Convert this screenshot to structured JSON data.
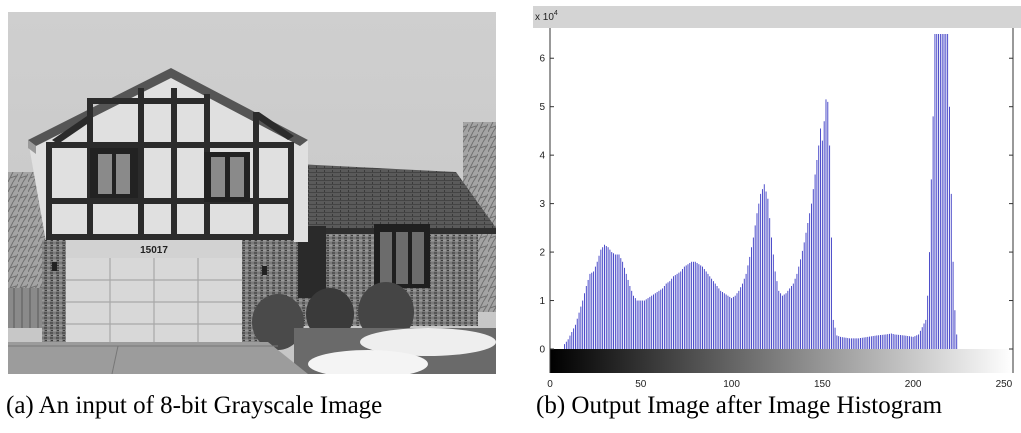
{
  "captions": {
    "a": "(a)  An input of 8-bit Grayscale Image",
    "b": "(b) Output Image after Image Histogram"
  },
  "photo": {
    "house_number": "15017"
  },
  "chart_data": {
    "type": "bar",
    "title": "",
    "xlabel": "",
    "ylabel": "",
    "y_multiplier_label": "x 10",
    "y_multiplier_exponent": "4",
    "xlim": [
      0,
      255
    ],
    "ylim": [
      0,
      6.5
    ],
    "xticks": [
      0,
      50,
      100,
      150,
      200,
      250
    ],
    "yticks": [
      0,
      1,
      2,
      3,
      4,
      5,
      6
    ],
    "bar_color": "#3b3bc4",
    "grid": false,
    "has_gray_colorbar": true,
    "points": [
      [
        8,
        0.1
      ],
      [
        10,
        0.2
      ],
      [
        12,
        0.35
      ],
      [
        14,
        0.5
      ],
      [
        16,
        0.75
      ],
      [
        18,
        1.0
      ],
      [
        20,
        1.3
      ],
      [
        22,
        1.55
      ],
      [
        24,
        1.6
      ],
      [
        26,
        1.8
      ],
      [
        28,
        2.05
      ],
      [
        30,
        2.15
      ],
      [
        32,
        2.1
      ],
      [
        34,
        2.0
      ],
      [
        36,
        1.95
      ],
      [
        38,
        1.95
      ],
      [
        40,
        1.8
      ],
      [
        42,
        1.55
      ],
      [
        44,
        1.3
      ],
      [
        46,
        1.1
      ],
      [
        48,
        1.0
      ],
      [
        50,
        1.0
      ],
      [
        52,
        1.0
      ],
      [
        54,
        1.05
      ],
      [
        56,
        1.1
      ],
      [
        58,
        1.15
      ],
      [
        60,
        1.2
      ],
      [
        62,
        1.25
      ],
      [
        64,
        1.35
      ],
      [
        66,
        1.4
      ],
      [
        68,
        1.5
      ],
      [
        70,
        1.55
      ],
      [
        72,
        1.6
      ],
      [
        74,
        1.7
      ],
      [
        76,
        1.75
      ],
      [
        78,
        1.8
      ],
      [
        80,
        1.8
      ],
      [
        82,
        1.75
      ],
      [
        84,
        1.7
      ],
      [
        86,
        1.6
      ],
      [
        88,
        1.5
      ],
      [
        90,
        1.4
      ],
      [
        92,
        1.3
      ],
      [
        94,
        1.2
      ],
      [
        96,
        1.15
      ],
      [
        98,
        1.1
      ],
      [
        100,
        1.05
      ],
      [
        102,
        1.1
      ],
      [
        104,
        1.2
      ],
      [
        106,
        1.35
      ],
      [
        108,
        1.55
      ],
      [
        110,
        1.9
      ],
      [
        112,
        2.3
      ],
      [
        114,
        2.8
      ],
      [
        116,
        3.2
      ],
      [
        118,
        3.4
      ],
      [
        120,
        3.1
      ],
      [
        122,
        2.3
      ],
      [
        124,
        1.6
      ],
      [
        126,
        1.2
      ],
      [
        128,
        1.1
      ],
      [
        130,
        1.15
      ],
      [
        132,
        1.25
      ],
      [
        134,
        1.35
      ],
      [
        136,
        1.55
      ],
      [
        138,
        1.85
      ],
      [
        140,
        2.2
      ],
      [
        142,
        2.6
      ],
      [
        144,
        3.0
      ],
      [
        146,
        3.6
      ],
      [
        148,
        4.2
      ],
      [
        149,
        4.55
      ],
      [
        150,
        4.3
      ],
      [
        151,
        4.7
      ],
      [
        152,
        5.15
      ],
      [
        153,
        5.1
      ],
      [
        154,
        4.2
      ],
      [
        155,
        2.3
      ],
      [
        156,
        0.6
      ],
      [
        158,
        0.28
      ],
      [
        160,
        0.25
      ],
      [
        165,
        0.22
      ],
      [
        170,
        0.22
      ],
      [
        175,
        0.25
      ],
      [
        180,
        0.28
      ],
      [
        185,
        0.3
      ],
      [
        188,
        0.32
      ],
      [
        190,
        0.3
      ],
      [
        195,
        0.28
      ],
      [
        200,
        0.25
      ],
      [
        203,
        0.3
      ],
      [
        205,
        0.45
      ],
      [
        207,
        0.6
      ],
      [
        208,
        1.1
      ],
      [
        209,
        2.0
      ],
      [
        210,
        3.5
      ],
      [
        211,
        4.8
      ],
      [
        212,
        6.5
      ],
      [
        214,
        6.5
      ],
      [
        216,
        6.5
      ],
      [
        218,
        6.5
      ],
      [
        219,
        6.5
      ],
      [
        220,
        5.0
      ],
      [
        221,
        3.2
      ],
      [
        222,
        1.8
      ],
      [
        223,
        0.8
      ],
      [
        224,
        0.3
      ]
    ]
  }
}
